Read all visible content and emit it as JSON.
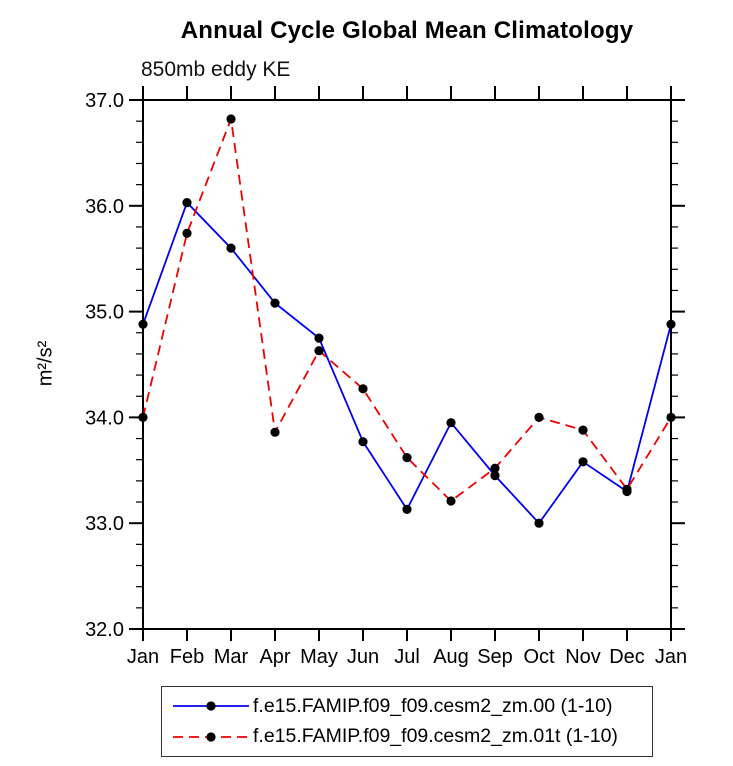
{
  "title": "Annual Cycle Global Mean Climatology",
  "subtitle": "850mb eddy KE",
  "y_axis_label": "m²/s²",
  "chart_data": {
    "type": "line",
    "title": "Annual Cycle Global Mean Climatology",
    "subtitle": "850mb eddy KE",
    "xlabel": "",
    "ylabel": "m²/s²",
    "categories": [
      "Jan",
      "Feb",
      "Mar",
      "Apr",
      "May",
      "Jun",
      "Jul",
      "Aug",
      "Sep",
      "Oct",
      "Nov",
      "Dec",
      "Jan"
    ],
    "series": [
      {
        "name": "f.e15.FAMIP.f09_f09.cesm2_zm.00 (1-10)",
        "color": "#0000ee",
        "line_style": "solid",
        "marker": "filled-circle",
        "marker_color": "#000000",
        "values": [
          34.88,
          36.03,
          35.6,
          35.08,
          34.75,
          33.77,
          33.13,
          33.95,
          33.45,
          33.0,
          33.58,
          33.3,
          34.88
        ]
      },
      {
        "name": "f.e15.FAMIP.f09_f09.cesm2_zm.01t (1-10)",
        "color": "#ee0000",
        "line_style": "dashed",
        "marker": "filled-circle",
        "marker_color": "#000000",
        "values": [
          34.0,
          35.74,
          36.82,
          33.86,
          34.63,
          34.27,
          33.62,
          33.21,
          33.52,
          34.0,
          33.88,
          33.32,
          34.0
        ]
      }
    ],
    "ylim": [
      32.0,
      37.0
    ],
    "ytick_major_step": 1.0,
    "ytick_minor_step": 0.2,
    "ytick_labels": [
      "32.0",
      "33.0",
      "34.0",
      "35.0",
      "36.0",
      "37.0"
    ],
    "grid": false,
    "legend_position": "bottom",
    "axis_color": "#000000",
    "background": "#ffffff"
  }
}
